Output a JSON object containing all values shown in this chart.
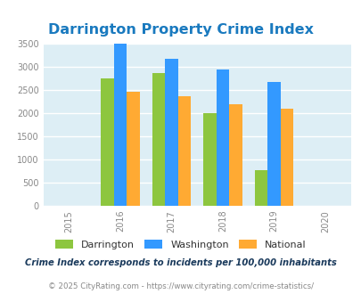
{
  "title": "Darrington Property Crime Index",
  "years": [
    2016,
    2017,
    2018,
    2019
  ],
  "x_ticks": [
    2015,
    2016,
    2017,
    2018,
    2019,
    2020
  ],
  "darrington": [
    2750,
    2875,
    2000,
    775
  ],
  "washington": [
    3500,
    3175,
    2950,
    2675
  ],
  "national": [
    2475,
    2375,
    2200,
    2100
  ],
  "bar_colors": {
    "darrington": "#8dc63f",
    "washington": "#3399ff",
    "national": "#ffaa33"
  },
  "ylim": [
    0,
    3500
  ],
  "yticks": [
    0,
    500,
    1000,
    1500,
    2000,
    2500,
    3000,
    3500
  ],
  "xlim": [
    2014.5,
    2020.5
  ],
  "title_color": "#1a7abf",
  "title_fontsize": 11.5,
  "legend_labels": [
    "Darrington",
    "Washington",
    "National"
  ],
  "footnote1": "Crime Index corresponds to incidents per 100,000 inhabitants",
  "footnote2": "© 2025 CityRating.com - https://www.cityrating.com/crime-statistics/",
  "bar_width": 0.25,
  "background_color": "#ddeef5",
  "fig_background": "#ffffff",
  "grid_color": "#ffffff",
  "tick_label_color": "#888888"
}
